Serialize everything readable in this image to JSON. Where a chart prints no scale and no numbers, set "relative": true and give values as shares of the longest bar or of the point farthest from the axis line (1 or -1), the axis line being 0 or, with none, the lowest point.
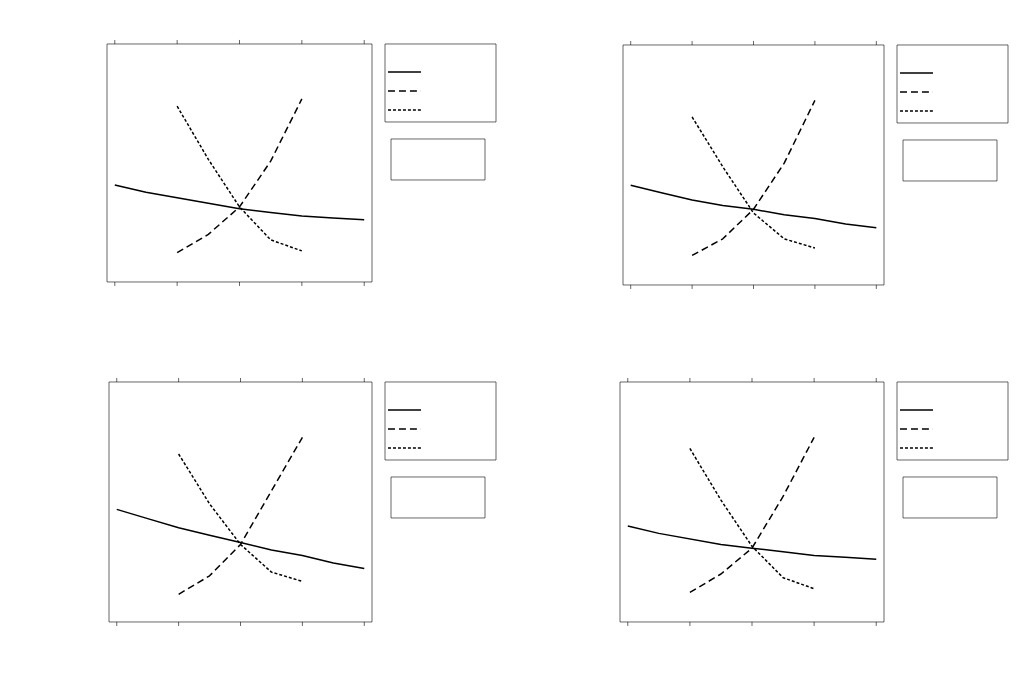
{
  "chart_data": [
    {
      "type": "line",
      "relative": true,
      "categories": [
        null,
        null,
        null,
        null,
        null,
        null,
        null,
        null,
        null
      ],
      "series": [
        {
          "color": "#000000",
          "line_style": "solid",
          "values": [
            0.53,
            0.49,
            0.46,
            0.43,
            0.4,
            0.38,
            0.36,
            0.35,
            0.34
          ]
        },
        {
          "color": "#000000",
          "line_style": "dashed",
          "values": [
            null,
            null,
            0.16,
            0.26,
            0.41,
            0.66,
            1.0,
            null,
            null
          ]
        },
        {
          "color": "#000000",
          "line_style": "dotted",
          "values": [
            null,
            null,
            0.96,
            0.67,
            0.41,
            0.23,
            0.17,
            null,
            null
          ]
        }
      ]
    },
    {
      "type": "line",
      "relative": true,
      "categories": [
        null,
        null,
        null,
        null,
        null,
        null,
        null,
        null,
        null
      ],
      "series": [
        {
          "color": "#000000",
          "line_style": "solid",
          "values": [
            0.54,
            0.5,
            0.46,
            0.43,
            0.41,
            0.38,
            0.36,
            0.33,
            0.31
          ]
        },
        {
          "color": "#000000",
          "line_style": "dashed",
          "values": [
            null,
            null,
            0.16,
            0.25,
            0.41,
            0.66,
            1.0,
            null,
            null
          ]
        },
        {
          "color": "#000000",
          "line_style": "dotted",
          "values": [
            null,
            null,
            0.91,
            0.64,
            0.39,
            0.25,
            0.2,
            null,
            null
          ]
        }
      ]
    },
    {
      "type": "line",
      "relative": true,
      "categories": [
        null,
        null,
        null,
        null,
        null,
        null,
        null,
        null,
        null
      ],
      "series": [
        {
          "color": "#000000",
          "line_style": "solid",
          "values": [
            0.61,
            0.56,
            0.51,
            0.47,
            0.43,
            0.39,
            0.36,
            0.32,
            0.29
          ]
        },
        {
          "color": "#000000",
          "line_style": "dashed",
          "values": [
            null,
            null,
            0.15,
            0.25,
            0.42,
            0.71,
            1.0,
            null,
            null
          ]
        },
        {
          "color": "#000000",
          "line_style": "dotted",
          "values": [
            null,
            null,
            0.91,
            0.64,
            0.42,
            0.27,
            0.22,
            null,
            null
          ]
        }
      ]
    },
    {
      "type": "line",
      "relative": true,
      "categories": [
        null,
        null,
        null,
        null,
        null,
        null,
        null,
        null,
        null
      ],
      "series": [
        {
          "color": "#000000",
          "line_style": "solid",
          "values": [
            0.52,
            0.48,
            0.45,
            0.42,
            0.4,
            0.38,
            0.36,
            0.35,
            0.34
          ]
        },
        {
          "color": "#000000",
          "line_style": "dashed",
          "values": [
            null,
            null,
            0.16,
            0.26,
            0.4,
            0.68,
            1.0,
            null,
            null
          ]
        },
        {
          "color": "#000000",
          "line_style": "dotted",
          "values": [
            null,
            null,
            0.94,
            0.66,
            0.41,
            0.24,
            0.18,
            null,
            null
          ]
        }
      ]
    }
  ]
}
